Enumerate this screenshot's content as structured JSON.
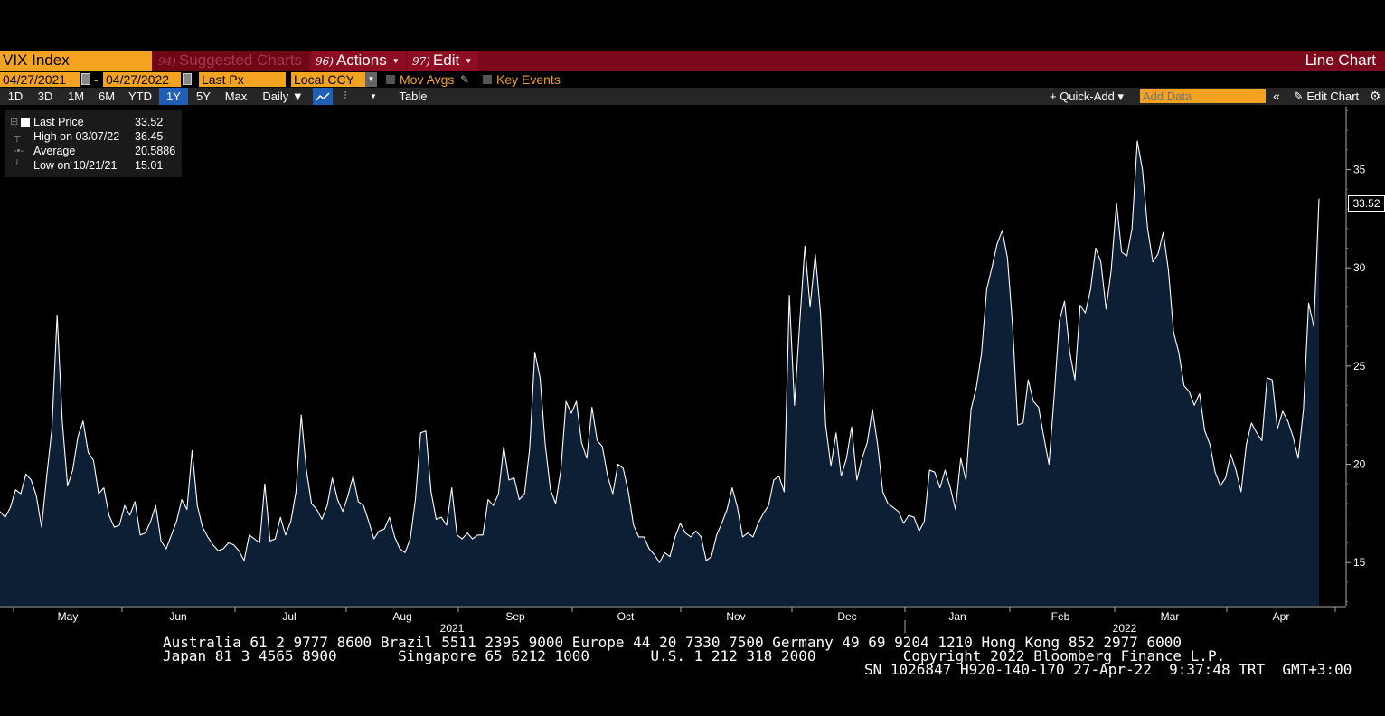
{
  "title_bar": {
    "security": "VIX Index",
    "suggested": "Suggested Charts",
    "suggested_num": "94)",
    "actions": "Actions",
    "actions_num": "96)",
    "edit": "Edit",
    "edit_num": "97)",
    "chart_type": "Line Chart"
  },
  "params": {
    "start_date": "04/27/2021",
    "date_sep": "-",
    "end_date": "04/27/2022",
    "field": "Last Px",
    "currency": "Local CCY",
    "mov_avgs": "Mov Avgs",
    "key_events": "Key Events"
  },
  "toolbar": {
    "ranges": [
      "1D",
      "3D",
      "1M",
      "6M",
      "YTD",
      "1Y",
      "5Y",
      "Max"
    ],
    "selected_range": "1Y",
    "periodicity": "Daily ▼",
    "table": "Table",
    "quick_add": "+ Quick-Add ▾",
    "add_data_placeholder": "Add Data",
    "edit_chart": "Edit Chart",
    "collapse_icon": "double-chevron-left-icon",
    "settings_icon": "gear-icon"
  },
  "legend": {
    "rows": [
      {
        "name": "Last Price",
        "value": "33.52"
      },
      {
        "name": "High on 03/07/22",
        "value": "36.45"
      },
      {
        "name": "Average",
        "value": "20.5886"
      },
      {
        "name": "Low on 10/21/21",
        "value": "15.01"
      }
    ]
  },
  "last_badge": "33.52",
  "chart_data": {
    "type": "area",
    "series": [
      {
        "name": "Last Price",
        "color": "#ffffff",
        "fill": "#0c1f35",
        "values": [
          17.6,
          17.3,
          17.8,
          18.7,
          18.5,
          19.5,
          19.2,
          18.4,
          16.8,
          19.4,
          21.8,
          27.6,
          22.2,
          18.9,
          19.7,
          21.4,
          22.2,
          20.6,
          20.2,
          18.5,
          18.8,
          17.4,
          16.8,
          16.9,
          17.9,
          17.4,
          18.1,
          16.4,
          16.5,
          17.1,
          17.9,
          16.1,
          15.7,
          16.4,
          17.1,
          18.2,
          17.7,
          20.7,
          17.9,
          16.8,
          16.3,
          15.9,
          15.6,
          15.7,
          16.0,
          15.9,
          15.6,
          15.1,
          16.4,
          16.2,
          16.0,
          19.0,
          16.1,
          16.2,
          17.3,
          16.4,
          17.1,
          18.6,
          22.5,
          19.7,
          18.0,
          17.7,
          17.2,
          17.9,
          19.3,
          18.2,
          17.6,
          18.4,
          19.4,
          18.1,
          17.9,
          17.1,
          16.2,
          16.6,
          16.7,
          17.3,
          16.3,
          15.7,
          15.5,
          16.2,
          18.2,
          21.6,
          21.7,
          18.6,
          17.2,
          17.3,
          16.9,
          18.8,
          16.4,
          16.2,
          16.5,
          16.2,
          16.4,
          16.4,
          18.2,
          17.9,
          18.5,
          20.9,
          19.2,
          19.3,
          18.2,
          18.5,
          20.8,
          25.7,
          24.4,
          21.0,
          18.7,
          18.0,
          19.7,
          23.2,
          22.6,
          23.2,
          21.1,
          20.3,
          22.9,
          21.2,
          20.9,
          19.4,
          18.5,
          20.0,
          19.8,
          18.6,
          16.9,
          16.3,
          16.3,
          15.7,
          15.4,
          15.0,
          15.5,
          15.3,
          16.3,
          17.0,
          16.5,
          16.3,
          16.6,
          16.3,
          15.1,
          15.3,
          16.4,
          17.0,
          17.7,
          18.8,
          17.8,
          16.3,
          16.5,
          16.3,
          17.0,
          17.5,
          17.9,
          19.2,
          19.4,
          18.6,
          28.6,
          23.0,
          27.2,
          31.1,
          28.0,
          30.7,
          27.7,
          22.0,
          19.9,
          21.6,
          19.4,
          20.3,
          21.9,
          19.2,
          20.3,
          21.1,
          22.8,
          21.0,
          18.6,
          18.0,
          17.8,
          17.6,
          17.0,
          17.4,
          17.3,
          16.6,
          17.1,
          19.7,
          19.6,
          18.8,
          19.7,
          18.8,
          17.7,
          20.3,
          19.2,
          22.8,
          23.9,
          25.6,
          28.9,
          30.0,
          31.2,
          31.9,
          30.5,
          27.0,
          22.0,
          22.1,
          24.3,
          23.2,
          22.9,
          21.4,
          20.0,
          23.5,
          27.3,
          28.3,
          25.7,
          24.3,
          28.1,
          27.7,
          28.9,
          31.0,
          30.3,
          27.9,
          29.9,
          33.3,
          30.8,
          30.6,
          32.0,
          36.45,
          35.0,
          32.0,
          30.3,
          30.7,
          31.8,
          29.9,
          26.7,
          25.7,
          24.0,
          23.7,
          23.0,
          23.6,
          21.7,
          21.0,
          19.6,
          18.9,
          19.3,
          20.5,
          19.7,
          18.6,
          21.0,
          22.1,
          21.6,
          21.2,
          24.4,
          24.3,
          21.8,
          22.7,
          22.2,
          21.4,
          20.3,
          22.8,
          28.2,
          27.0,
          33.52
        ]
      }
    ],
    "x_labels": [
      "May",
      "Jun",
      "Jul",
      "Aug",
      "Sep",
      "Oct",
      "Nov",
      "Dec",
      "Jan",
      "Feb",
      "Mar",
      "Apr"
    ],
    "year_labels": [
      "2021",
      "2022"
    ],
    "y_ticks": [
      15,
      20,
      25,
      30,
      35
    ],
    "ylim": [
      12.8,
      38.2
    ],
    "x_range": [
      "04/27/2021",
      "04/27/2022"
    ]
  },
  "footer": {
    "line1": "Australia 61 2 9777 8600 Brazil 5511 2395 9000 Europe 44 20 7330 7500 Germany 49 69 9204 1210 Hong Kong 852 2977 6000",
    "line2": "Japan 81 3 4565 8900       Singapore 65 6212 1000       U.S. 1 212 318 2000          Copyright 2022 Bloomberg Finance L.P.",
    "line3": "SN 1026847 H920-140-170 27-Apr-22  9:37:48 TRT  GMT+3:00"
  }
}
